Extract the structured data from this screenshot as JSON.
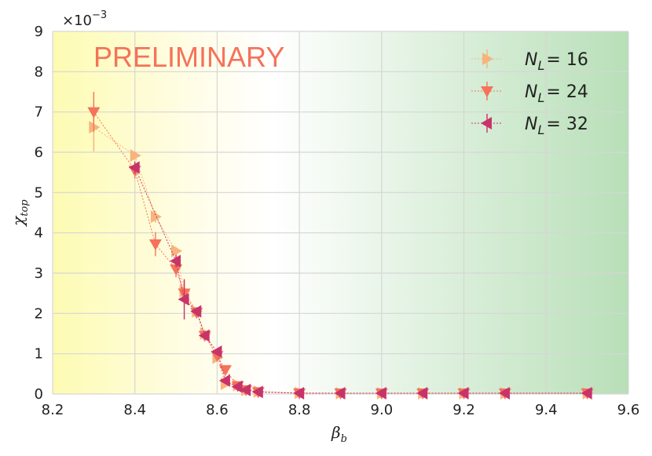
{
  "chart_data": {
    "type": "scatter",
    "xlabel": "β",
    "xlabel_sub": "b",
    "ylabel": "χ",
    "ylabel_sub": "top",
    "y_multiplier": "×10",
    "y_multiplier_exp": "−3",
    "xlim": [
      8.2,
      9.6
    ],
    "ylim": [
      0,
      9
    ],
    "x_ticks": [
      "8.2",
      "8.4",
      "8.6",
      "8.8",
      "9.0",
      "9.2",
      "9.4",
      "9.6"
    ],
    "y_ticks": [
      "0",
      "1",
      "2",
      "3",
      "4",
      "5",
      "6",
      "7",
      "8",
      "9"
    ],
    "grid": true,
    "background": "horizontal gradient yellow → white → green",
    "annotation": "PRELIMINARY",
    "legend_position": "top-right",
    "series": [
      {
        "name_var": "N",
        "name_sub": "L",
        "name_value": "= 16",
        "marker": "triangle-right",
        "color": "#f7b47c",
        "points": [
          {
            "x": 8.3,
            "y": 6.62,
            "err": 0.6
          },
          {
            "x": 8.4,
            "y": 5.92,
            "err": 0.1
          },
          {
            "x": 8.45,
            "y": 4.4,
            "err": 0.15
          },
          {
            "x": 8.5,
            "y": 3.55,
            "err": 0.1
          },
          {
            "x": 8.52,
            "y": 2.55,
            "err": 0.1
          },
          {
            "x": 8.55,
            "y": 2.05,
            "err": 0.1
          },
          {
            "x": 8.57,
            "y": 1.5,
            "err": 0.08
          },
          {
            "x": 8.6,
            "y": 0.9,
            "err": 0.08
          },
          {
            "x": 8.62,
            "y": 0.25,
            "err": 0.05
          },
          {
            "x": 8.65,
            "y": 0.22,
            "err": 0.03
          },
          {
            "x": 8.67,
            "y": 0.1,
            "err": 0.02
          },
          {
            "x": 8.7,
            "y": 0.06,
            "err": 0.01
          },
          {
            "x": 8.8,
            "y": 0.03,
            "err": 0.01
          },
          {
            "x": 8.9,
            "y": 0.02,
            "err": 0.01
          },
          {
            "x": 9.0,
            "y": 0.02,
            "err": 0.01
          },
          {
            "x": 9.1,
            "y": 0.02,
            "err": 0.01
          },
          {
            "x": 9.2,
            "y": 0.02,
            "err": 0.01
          },
          {
            "x": 9.3,
            "y": 0.02,
            "err": 0.01
          },
          {
            "x": 9.5,
            "y": 0.02,
            "err": 0.01
          }
        ]
      },
      {
        "name_var": "N",
        "name_sub": "L",
        "name_value": "= 24",
        "marker": "triangle-down",
        "color": "#f4735a",
        "points": [
          {
            "x": 8.3,
            "y": 7.0,
            "err": 0.5
          },
          {
            "x": 8.4,
            "y": 5.55,
            "err": 0.2
          },
          {
            "x": 8.45,
            "y": 3.72,
            "err": 0.3
          },
          {
            "x": 8.5,
            "y": 3.1,
            "err": 0.2
          },
          {
            "x": 8.52,
            "y": 2.5,
            "err": 0.3
          },
          {
            "x": 8.55,
            "y": 2.02,
            "err": 0.1
          },
          {
            "x": 8.57,
            "y": 1.45,
            "err": 0.1
          },
          {
            "x": 8.6,
            "y": 0.95,
            "err": 0.08
          },
          {
            "x": 8.62,
            "y": 0.6,
            "err": 0.06
          },
          {
            "x": 8.65,
            "y": 0.2,
            "err": 0.03
          },
          {
            "x": 8.67,
            "y": 0.1,
            "err": 0.02
          },
          {
            "x": 8.7,
            "y": 0.05,
            "err": 0.01
          },
          {
            "x": 8.8,
            "y": 0.02,
            "err": 0.01
          },
          {
            "x": 8.9,
            "y": 0.02,
            "err": 0.01
          },
          {
            "x": 9.0,
            "y": 0.02,
            "err": 0.01
          },
          {
            "x": 9.1,
            "y": 0.02,
            "err": 0.01
          },
          {
            "x": 9.2,
            "y": 0.02,
            "err": 0.01
          },
          {
            "x": 9.3,
            "y": 0.02,
            "err": 0.01
          },
          {
            "x": 9.5,
            "y": 0.02,
            "err": 0.01
          }
        ]
      },
      {
        "name_var": "N",
        "name_sub": "L",
        "name_value": "= 32",
        "marker": "triangle-left",
        "color": "#c8336a",
        "points": [
          {
            "x": 8.4,
            "y": 5.62,
            "err": 0.15
          },
          {
            "x": 8.5,
            "y": 3.3,
            "err": 0.15
          },
          {
            "x": 8.52,
            "y": 2.35,
            "err": 0.5
          },
          {
            "x": 8.55,
            "y": 2.05,
            "err": 0.1
          },
          {
            "x": 8.57,
            "y": 1.45,
            "err": 0.1
          },
          {
            "x": 8.6,
            "y": 1.05,
            "err": 0.08
          },
          {
            "x": 8.62,
            "y": 0.33,
            "err": 0.05
          },
          {
            "x": 8.65,
            "y": 0.18,
            "err": 0.03
          },
          {
            "x": 8.67,
            "y": 0.1,
            "err": 0.02
          },
          {
            "x": 8.7,
            "y": 0.05,
            "err": 0.01
          },
          {
            "x": 8.8,
            "y": 0.02,
            "err": 0.01
          },
          {
            "x": 8.9,
            "y": 0.02,
            "err": 0.01
          },
          {
            "x": 9.0,
            "y": 0.02,
            "err": 0.01
          },
          {
            "x": 9.1,
            "y": 0.02,
            "err": 0.01
          },
          {
            "x": 9.2,
            "y": 0.02,
            "err": 0.01
          },
          {
            "x": 9.3,
            "y": 0.02,
            "err": 0.01
          },
          {
            "x": 9.5,
            "y": 0.02,
            "err": 0.01
          }
        ]
      }
    ]
  },
  "colors": {
    "bg_left": "#fdfbb2",
    "bg_mid": "#ffffff",
    "bg_right": "#b8dfb8",
    "watermark": "#f4735a",
    "grid": "#d6d6d6"
  }
}
